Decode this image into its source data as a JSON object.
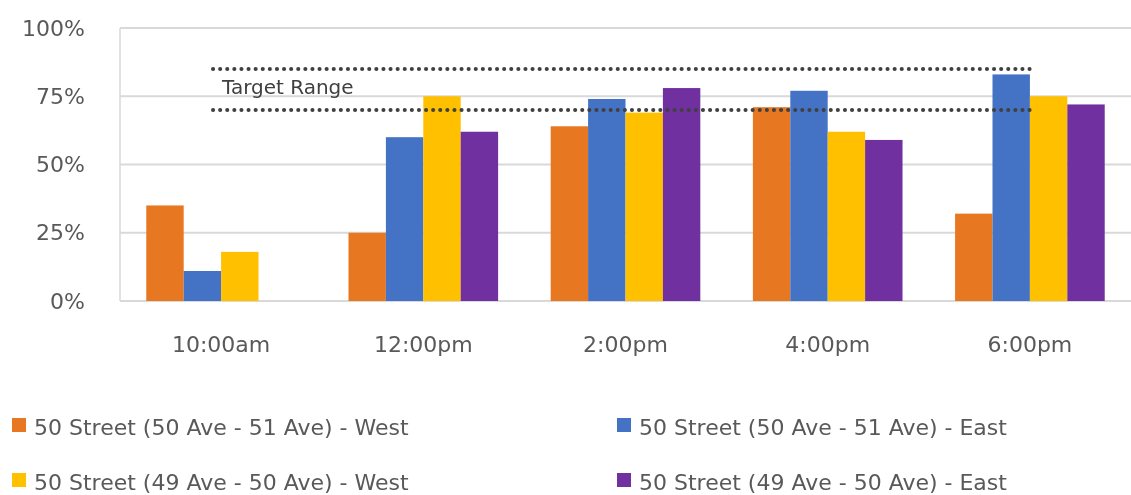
{
  "chart_data": {
    "type": "bar",
    "categories": [
      "10:00am",
      "12:00pm",
      "2:00pm",
      "4:00pm",
      "6:00pm"
    ],
    "series": [
      {
        "name": "50 Street (50 Ave - 51 Ave) - West",
        "color": "#e87722",
        "values": [
          35,
          25,
          64,
          71,
          32
        ]
      },
      {
        "name": "50 Street (50 Ave - 51 Ave) - East",
        "color": "#4472c4",
        "values": [
          11,
          60,
          74,
          77,
          83
        ]
      },
      {
        "name": "50 Street (49 Ave - 50 Ave) - West",
        "color": "#ffc000",
        "values": [
          18,
          75,
          69,
          62,
          75
        ]
      },
      {
        "name": "50 Street (49 Ave - 50 Ave) - East",
        "color": "#7030a0",
        "values": [
          null,
          62,
          78,
          59,
          72
        ]
      }
    ],
    "ylim": [
      0,
      100
    ],
    "yticks": [
      {
        "value": 0,
        "label": "0%"
      },
      {
        "value": 25,
        "label": "25%"
      },
      {
        "value": 50,
        "label": "50%"
      },
      {
        "value": 75,
        "label": "75%"
      },
      {
        "value": 100,
        "label": "100%"
      }
    ],
    "grid": "y",
    "legend": "bottom",
    "ref_lines": [
      {
        "axis": "y",
        "value": 85,
        "label": "Target Range",
        "color": "#404040",
        "line_style": "dotted"
      },
      {
        "axis": "y",
        "value": 70,
        "color": "#404040",
        "line_style": "dotted"
      }
    ]
  }
}
